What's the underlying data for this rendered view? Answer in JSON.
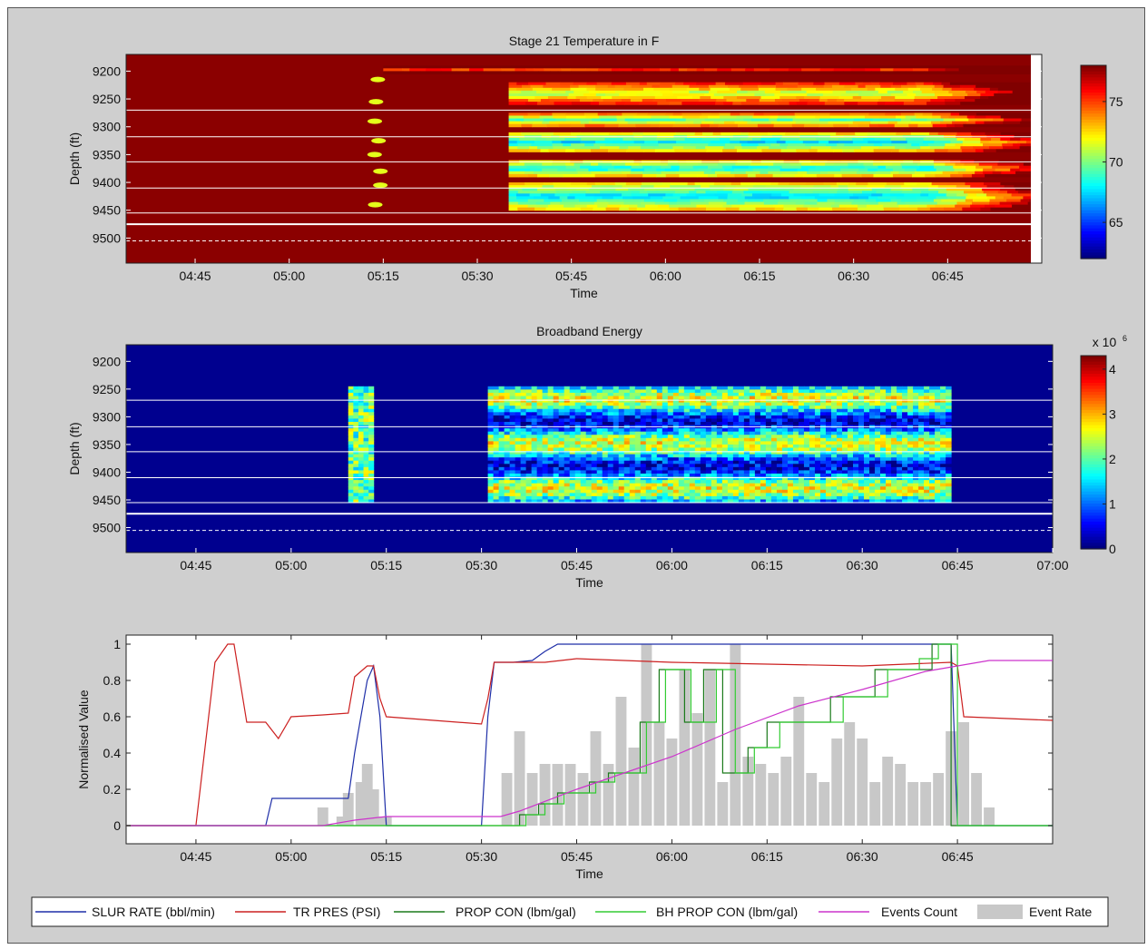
{
  "colors": {
    "figure_bg": "#cfcfcf",
    "jet_dark_red": "#8b0000",
    "jet_dark_blue": "#00008f",
    "slur_rate": "#1f2fa8",
    "tr_pres": "#cc2020",
    "prop_con": "#1a7a1a",
    "bh_prop_con": "#33cc33",
    "events_count": "#cc33cc",
    "event_rate": "#c8c8c8"
  },
  "chart_data": [
    {
      "type": "heatmap",
      "title": "Stage 21 Temperature in F",
      "xlabel": "Time",
      "ylabel": "Depth (ft)",
      "xlim": [
        "04:34",
        "07:00"
      ],
      "x_ticks": [
        "04:45",
        "05:00",
        "05:15",
        "05:30",
        "05:45",
        "06:00",
        "06:15",
        "06:30",
        "06:45"
      ],
      "ylim": [
        9170,
        9545
      ],
      "y_ticks": [
        "9200",
        "9250",
        "9300",
        "9350",
        "9400",
        "9450",
        "9500"
      ],
      "colorbar": {
        "range": [
          62,
          78
        ],
        "ticks": [
          "65",
          "70",
          "75"
        ]
      },
      "bands": [
        {
          "depth_range": [
            9190,
            9205
          ],
          "state": "cooled",
          "start": "05:15",
          "level": "warm-yellow"
        },
        {
          "depth_range": [
            9220,
            9260
          ],
          "state": "cooled",
          "start": "05:35",
          "level": "mixed"
        },
        {
          "depth_range": [
            9275,
            9300
          ],
          "state": "cooled",
          "start": "05:35",
          "level": "cool"
        },
        {
          "depth_range": [
            9310,
            9345
          ],
          "state": "cooled",
          "start": "05:35",
          "level": "cold"
        },
        {
          "depth_range": [
            9360,
            9390
          ],
          "state": "cooled",
          "start": "05:35",
          "level": "cold"
        },
        {
          "depth_range": [
            9400,
            9450
          ],
          "state": "cooled",
          "start": "05:35",
          "level": "cold"
        }
      ],
      "reference_lines": [
        9270,
        9318,
        9363,
        9410,
        9455
      ],
      "bottom_line": 9475,
      "dashed_line": 9505
    },
    {
      "type": "heatmap",
      "title": "Broadband Energy",
      "xlabel": "Time",
      "ylabel": "Depth (ft)",
      "xlim": [
        "04:34",
        "07:00"
      ],
      "x_ticks": [
        "04:45",
        "05:00",
        "05:15",
        "05:30",
        "05:45",
        "06:00",
        "06:15",
        "06:30",
        "06:45",
        "07:00"
      ],
      "ylim": [
        9170,
        9545
      ],
      "y_ticks": [
        "9200",
        "9250",
        "9300",
        "9350",
        "9400",
        "9450",
        "9500"
      ],
      "colorbar": {
        "range": [
          0,
          4.3
        ],
        "ticks": [
          "0",
          "1",
          "2",
          "3",
          "4"
        ],
        "scale_label": "x 10",
        "scale_exponent": "6"
      },
      "active_periods": [
        {
          "start": "05:09",
          "end": "05:13",
          "depth_range": [
            9245,
            9455
          ]
        },
        {
          "start": "05:31",
          "end": "06:44",
          "depth_range": [
            9245,
            9455
          ]
        }
      ],
      "reference_lines": [
        9270,
        9318,
        9363,
        9410,
        9455
      ],
      "bottom_line": 9475,
      "dashed_line": 9505
    },
    {
      "type": "line",
      "xlabel": "Time",
      "ylabel": "Normalised Value",
      "xlim": [
        "04:34",
        "07:00"
      ],
      "x_ticks": [
        "04:45",
        "05:00",
        "05:15",
        "05:30",
        "05:45",
        "06:00",
        "06:15",
        "06:30",
        "06:45"
      ],
      "ylim": [
        -0.1,
        1.05
      ],
      "y_ticks": [
        "0",
        "0.2",
        "0.4",
        "0.6",
        "0.8",
        "1"
      ],
      "series": [
        {
          "name": "SLUR RATE (bbl/min)",
          "x": [
            "04:34",
            "04:45",
            "04:46",
            "04:56",
            "04:57",
            "05:09",
            "05:10",
            "05:11",
            "05:12",
            "05:13",
            "05:14",
            "05:15",
            "05:30",
            "05:31",
            "05:32",
            "05:35",
            "05:38",
            "05:40",
            "05:42",
            "05:45",
            "06:00",
            "06:30",
            "06:44",
            "06:45",
            "07:00"
          ],
          "y": [
            0,
            0,
            0,
            0,
            0.15,
            0.15,
            0.4,
            0.6,
            0.8,
            0.88,
            0.6,
            0,
            0,
            0.6,
            0.9,
            0.9,
            0.91,
            0.96,
            1.0,
            1.0,
            1.0,
            1.0,
            1.0,
            0,
            0
          ]
        },
        {
          "name": "TR PRES (PSI)",
          "x": [
            "04:34",
            "04:45",
            "04:46",
            "04:48",
            "04:50",
            "04:51",
            "04:53",
            "04:56",
            "04:58",
            "05:00",
            "05:05",
            "05:09",
            "05:10",
            "05:12",
            "05:13",
            "05:14",
            "05:15",
            "05:30",
            "05:31",
            "05:32",
            "05:35",
            "05:40",
            "05:45",
            "06:00",
            "06:30",
            "06:44",
            "06:45",
            "06:46",
            "07:00"
          ],
          "y": [
            0,
            0,
            0.3,
            0.9,
            1.0,
            1.0,
            0.57,
            0.57,
            0.48,
            0.6,
            0.61,
            0.62,
            0.82,
            0.88,
            0.88,
            0.7,
            0.6,
            0.56,
            0.7,
            0.9,
            0.9,
            0.9,
            0.92,
            0.9,
            0.88,
            0.9,
            0.88,
            0.6,
            0.58
          ]
        },
        {
          "name": "PROP CON (lbm/gal)",
          "x": [
            "04:34",
            "05:36",
            "05:36",
            "05:39",
            "05:39",
            "05:42",
            "05:42",
            "05:47",
            "05:47",
            "05:50",
            "05:50",
            "05:55",
            "05:55",
            "05:58",
            "05:58",
            "06:02",
            "06:02",
            "06:05",
            "06:05",
            "06:08",
            "06:08",
            "06:12",
            "06:12",
            "06:15",
            "06:15",
            "06:20",
            "06:20",
            "06:25",
            "06:25",
            "06:32",
            "06:32",
            "06:37",
            "06:37",
            "06:41",
            "06:41",
            "06:44",
            "06:44",
            "07:00"
          ],
          "y": [
            0,
            0,
            0.06,
            0.06,
            0.12,
            0.12,
            0.18,
            0.18,
            0.24,
            0.24,
            0.29,
            0.29,
            0.57,
            0.57,
            0.86,
            0.86,
            0.57,
            0.57,
            0.86,
            0.86,
            0.29,
            0.29,
            0.43,
            0.43,
            0.57,
            0.57,
            0.57,
            0.57,
            0.71,
            0.71,
            0.86,
            0.86,
            0.86,
            0.86,
            1.0,
            1.0,
            0,
            0
          ]
        },
        {
          "name": "BH PROP CON (lbm/gal)",
          "x": [
            "04:34",
            "05:37",
            "05:37",
            "05:40",
            "05:40",
            "05:43",
            "05:43",
            "05:48",
            "05:48",
            "05:51",
            "05:51",
            "05:56",
            "05:56",
            "05:59",
            "05:59",
            "06:03",
            "06:03",
            "06:07",
            "06:07",
            "06:10",
            "06:10",
            "06:13",
            "06:13",
            "06:17",
            "06:17",
            "06:22",
            "06:22",
            "06:27",
            "06:27",
            "06:34",
            "06:34",
            "06:39",
            "06:39",
            "06:42",
            "06:42",
            "06:45",
            "06:45",
            "07:00"
          ],
          "y": [
            0,
            0,
            0.06,
            0.06,
            0.12,
            0.12,
            0.18,
            0.18,
            0.24,
            0.24,
            0.29,
            0.29,
            0.57,
            0.57,
            0.86,
            0.86,
            0.57,
            0.57,
            0.86,
            0.86,
            0.29,
            0.29,
            0.43,
            0.43,
            0.57,
            0.57,
            0.57,
            0.57,
            0.71,
            0.71,
            0.86,
            0.86,
            0.92,
            0.92,
            1.0,
            1.0,
            0,
            0
          ]
        },
        {
          "name": "Events Count",
          "x": [
            "04:34",
            "05:05",
            "05:10",
            "05:15",
            "05:33",
            "05:36",
            "05:45",
            "06:00",
            "06:10",
            "06:20",
            "06:30",
            "06:40",
            "06:45",
            "06:50",
            "07:00"
          ],
          "y": [
            0,
            0,
            0.03,
            0.05,
            0.05,
            0.08,
            0.2,
            0.38,
            0.53,
            0.66,
            0.75,
            0.85,
            0.88,
            0.91,
            0.91
          ]
        },
        {
          "name": "Event Rate",
          "bar_width_min": 1.7,
          "x": [
            "05:05",
            "05:08",
            "05:09",
            "05:11",
            "05:12",
            "05:13",
            "05:14",
            "05:15",
            "05:34",
            "05:36",
            "05:38",
            "05:40",
            "05:42",
            "05:44",
            "05:46",
            "05:48",
            "05:50",
            "05:52",
            "05:54",
            "05:56",
            "05:58",
            "06:00",
            "06:02",
            "06:04",
            "06:06",
            "06:08",
            "06:10",
            "06:12",
            "06:14",
            "06:16",
            "06:18",
            "06:20",
            "06:22",
            "06:24",
            "06:26",
            "06:28",
            "06:30",
            "06:32",
            "06:34",
            "06:36",
            "06:38",
            "06:40",
            "06:42",
            "06:44",
            "06:46",
            "06:48",
            "06:50"
          ],
          "y": [
            0.1,
            0.05,
            0.18,
            0.24,
            0.34,
            0.2,
            0.05,
            0.05,
            0.29,
            0.52,
            0.29,
            0.34,
            0.34,
            0.34,
            0.29,
            0.52,
            0.34,
            0.71,
            0.43,
            1.0,
            0.57,
            0.48,
            0.86,
            0.62,
            0.86,
            0.24,
            1.0,
            0.38,
            0.34,
            0.29,
            0.38,
            0.71,
            0.29,
            0.24,
            0.48,
            0.57,
            0.48,
            0.24,
            0.38,
            0.34,
            0.24,
            0.24,
            0.29,
            0.52,
            0.57,
            0.29,
            0.1
          ]
        }
      ],
      "legend": {
        "placement": "bottom",
        "entries": [
          "SLUR RATE (bbl/min)",
          "TR PRES (PSI)",
          "PROP CON (lbm/gal)",
          "BH PROP CON (lbm/gal)",
          "Events Count",
          "Event Rate"
        ]
      }
    }
  ]
}
